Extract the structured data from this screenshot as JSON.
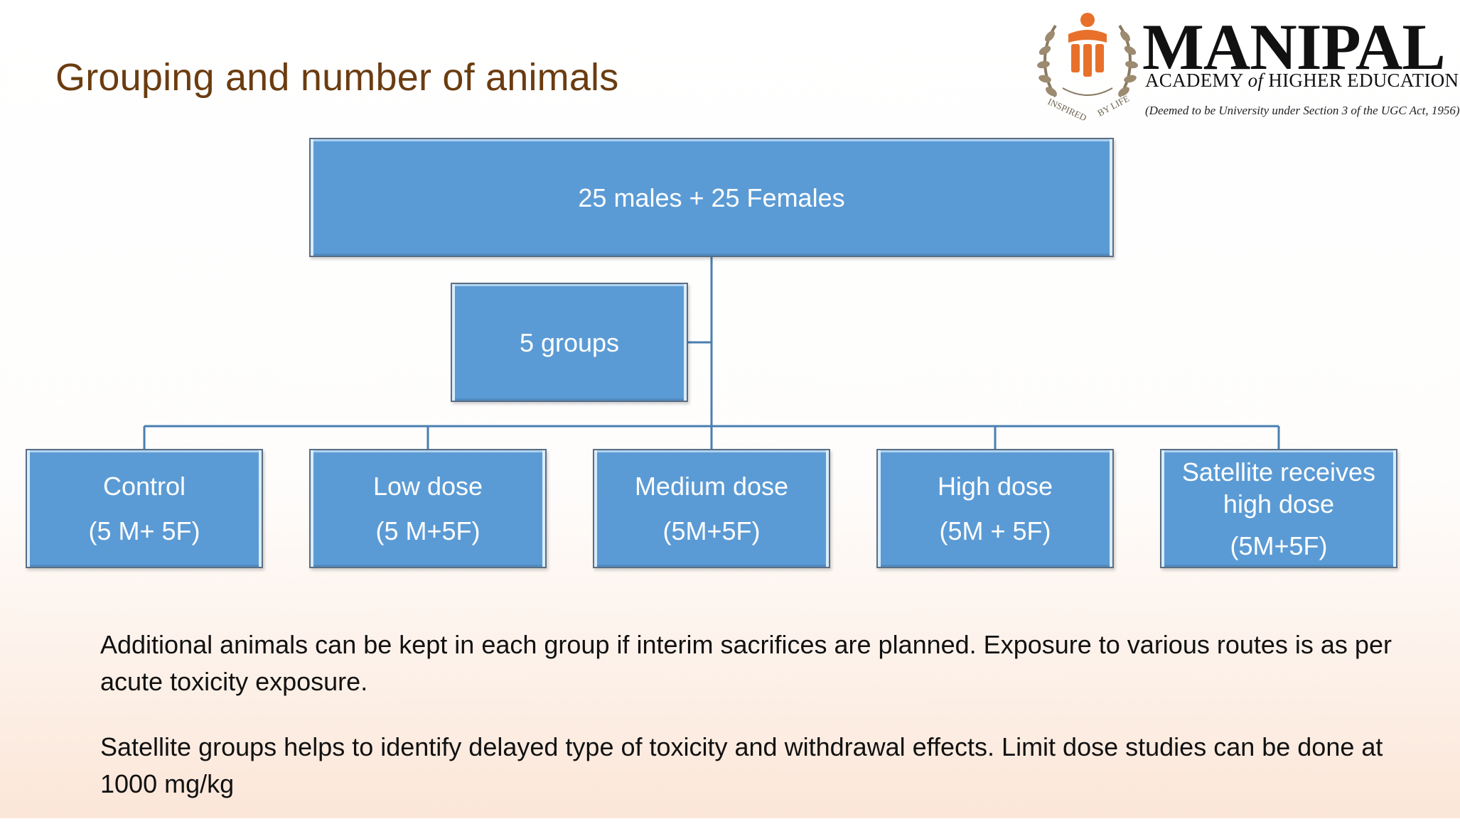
{
  "title": "Grouping and number of animals",
  "logo": {
    "name": "MANIPAL",
    "subtitle_prefix": "ACADEMY ",
    "subtitle_of": "of",
    "subtitle_suffix": " HIGHER EDUCATION",
    "note": "(Deemed to be University under Section 3 of the UGC Act, 1956)",
    "emblem_motto": "INSPIRED BY LIFE",
    "icon": "manipal-emblem",
    "brand_color": "#e8702a"
  },
  "org_chart": {
    "root": {
      "label": "25 males + 25 Females"
    },
    "assistant": {
      "label": "5 groups"
    },
    "groups": [
      {
        "name": "Control",
        "count": "(5 M+ 5F)"
      },
      {
        "name": "Low dose",
        "count": "(5 M+5F)"
      },
      {
        "name": "Medium dose",
        "count": "(5M+5F)"
      },
      {
        "name": "High dose",
        "count": "(5M + 5F)"
      },
      {
        "name_line1": "Satellite receives",
        "name_line2": "high dose",
        "count": "(5M+5F)"
      }
    ],
    "box_color": "#5b9bd5",
    "connector_color": "#4a7fb0"
  },
  "notes": [
    "Additional animals can be kept in each group if interim sacrifices are planned. Exposure to various routes is as per acute toxicity exposure.",
    "Satellite groups helps to identify delayed type of toxicity and withdrawal effects. Limit dose studies can be done at 1000 mg/kg"
  ]
}
